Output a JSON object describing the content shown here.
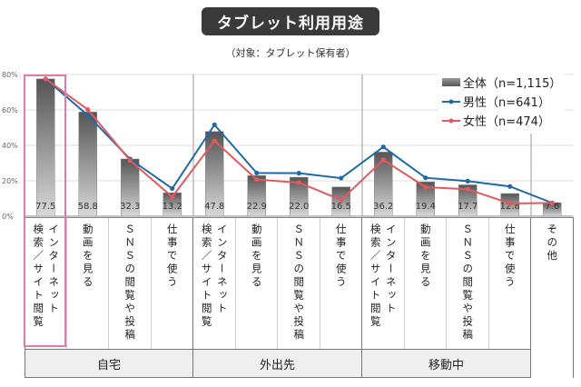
{
  "title": "タブレット利用用途",
  "subtitle": "（対象：タブレット保有者）",
  "chart_data": {
    "type": "bar+line",
    "ylim": [
      0,
      80
    ],
    "yticks": [
      "0%",
      "20%",
      "40%",
      "60%",
      "80%"
    ],
    "grid": true,
    "legend_position": "top-right",
    "categories": [
      "インターネット\n検索／サイト閲覧",
      "動画を見る",
      "ＳＮＳの閲覧や投稿",
      "仕事で使う",
      "インターネット\n検索／サイト閲覧",
      "動画を見る",
      "ＳＮＳの閲覧や投稿",
      "仕事で使う",
      "インターネット\n検索／サイト閲覧",
      "動画を見る",
      "ＳＮＳの閲覧や投稿",
      "仕事で使う",
      "その他"
    ],
    "groups": [
      {
        "label": "自宅",
        "span": 4
      },
      {
        "label": "外出先",
        "span": 4
      },
      {
        "label": "移動中",
        "span": 4
      },
      {
        "label": "",
        "span": 1
      }
    ],
    "series": [
      {
        "name": "全体（n=1,115）",
        "kind": "bar",
        "color": "#777777",
        "values": [
          77.5,
          58.8,
          32.3,
          13.2,
          47.8,
          22.9,
          22.0,
          16.5,
          36.2,
          19.4,
          17.7,
          12.8,
          7.6
        ],
        "labels": [
          "77.5",
          "58.8",
          "32.3",
          "13.2",
          "47.8",
          "22.9",
          "22.0",
          "16.5",
          "36.2",
          "19.4",
          "17.7",
          "12.8",
          "7.6"
        ]
      },
      {
        "name": "男性（n=641）",
        "kind": "line",
        "color": "#1f6aa5",
        "values": [
          77.5,
          57.0,
          32.3,
          15.6,
          51.6,
          24.4,
          24.3,
          21.5,
          39.1,
          21.7,
          19.8,
          16.8,
          7.5
        ]
      },
      {
        "name": "女性（n=474）",
        "kind": "line",
        "color": "#e05a5e",
        "values": [
          77.5,
          60.2,
          31.5,
          10.9,
          42.6,
          20.7,
          19.0,
          9.2,
          31.8,
          16.4,
          15.2,
          7.2,
          7.5
        ]
      }
    ],
    "highlight_color": "#e07aae"
  }
}
